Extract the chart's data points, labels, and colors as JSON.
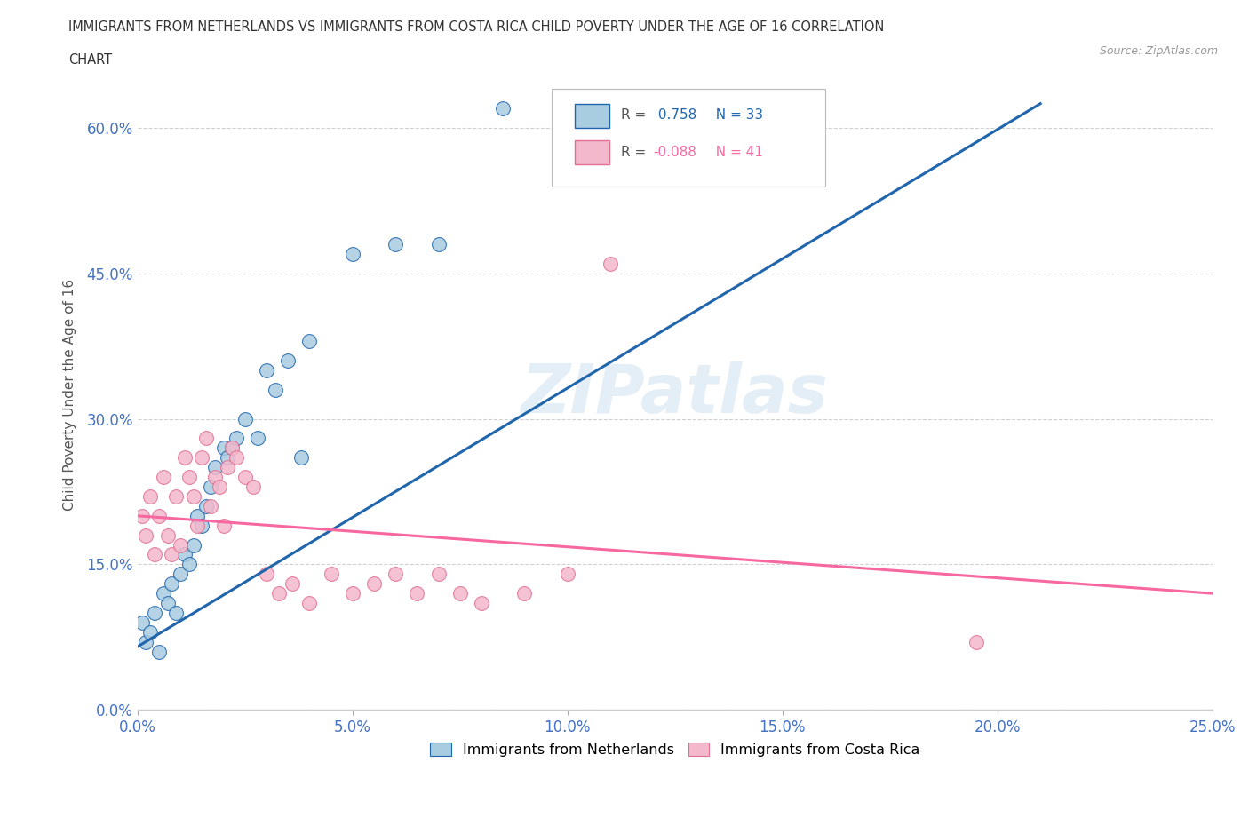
{
  "title_line1": "IMMIGRANTS FROM NETHERLANDS VS IMMIGRANTS FROM COSTA RICA CHILD POVERTY UNDER THE AGE OF 16 CORRELATION",
  "title_line2": "CHART",
  "source": "Source: ZipAtlas.com",
  "ylabel": "Child Poverty Under the Age of 16",
  "xlim": [
    0.0,
    0.25
  ],
  "ylim": [
    0.0,
    0.65
  ],
  "xticks": [
    0.0,
    0.05,
    0.1,
    0.15,
    0.2,
    0.25
  ],
  "xticklabels": [
    "0.0%",
    "5.0%",
    "10.0%",
    "15.0%",
    "20.0%",
    "25.0%"
  ],
  "yticks": [
    0.0,
    0.15,
    0.3,
    0.45,
    0.6
  ],
  "yticklabels": [
    "0.0%",
    "15.0%",
    "30.0%",
    "45.0%",
    "60.0%"
  ],
  "netherlands_R": 0.758,
  "netherlands_N": 33,
  "costarica_R": -0.088,
  "costarica_N": 41,
  "netherlands_color": "#a8cce0",
  "costarica_color": "#f4b8cc",
  "netherlands_line_color": "#2166ac",
  "costarica_line_color": "#f768a1",
  "background_color": "#ffffff",
  "watermark": "ZIPatlas",
  "nl_x": [
    0.001,
    0.002,
    0.003,
    0.004,
    0.005,
    0.006,
    0.007,
    0.008,
    0.009,
    0.01,
    0.011,
    0.012,
    0.013,
    0.014,
    0.015,
    0.016,
    0.017,
    0.018,
    0.02,
    0.021,
    0.022,
    0.023,
    0.025,
    0.028,
    0.03,
    0.032,
    0.035,
    0.038,
    0.04,
    0.05,
    0.06,
    0.07,
    0.085
  ],
  "nl_y": [
    0.09,
    0.07,
    0.08,
    0.1,
    0.06,
    0.12,
    0.11,
    0.13,
    0.1,
    0.14,
    0.16,
    0.15,
    0.17,
    0.2,
    0.19,
    0.21,
    0.23,
    0.25,
    0.27,
    0.26,
    0.27,
    0.28,
    0.3,
    0.28,
    0.35,
    0.33,
    0.36,
    0.26,
    0.38,
    0.47,
    0.48,
    0.48,
    0.62
  ],
  "cr_x": [
    0.001,
    0.002,
    0.003,
    0.004,
    0.005,
    0.006,
    0.007,
    0.008,
    0.009,
    0.01,
    0.011,
    0.012,
    0.013,
    0.014,
    0.015,
    0.016,
    0.017,
    0.018,
    0.019,
    0.02,
    0.021,
    0.022,
    0.023,
    0.025,
    0.027,
    0.03,
    0.033,
    0.036,
    0.04,
    0.045,
    0.05,
    0.055,
    0.06,
    0.065,
    0.07,
    0.075,
    0.08,
    0.09,
    0.1,
    0.11,
    0.195
  ],
  "cr_y": [
    0.2,
    0.18,
    0.22,
    0.16,
    0.2,
    0.24,
    0.18,
    0.16,
    0.22,
    0.17,
    0.26,
    0.24,
    0.22,
    0.19,
    0.26,
    0.28,
    0.21,
    0.24,
    0.23,
    0.19,
    0.25,
    0.27,
    0.26,
    0.24,
    0.23,
    0.14,
    0.12,
    0.13,
    0.11,
    0.14,
    0.12,
    0.13,
    0.14,
    0.12,
    0.14,
    0.12,
    0.11,
    0.12,
    0.14,
    0.46,
    0.07
  ],
  "nl_line_x": [
    0.0,
    0.21
  ],
  "nl_line_y": [
    0.065,
    0.625
  ],
  "cr_line_x": [
    0.0,
    0.25
  ],
  "cr_line_y": [
    0.2,
    0.12
  ]
}
